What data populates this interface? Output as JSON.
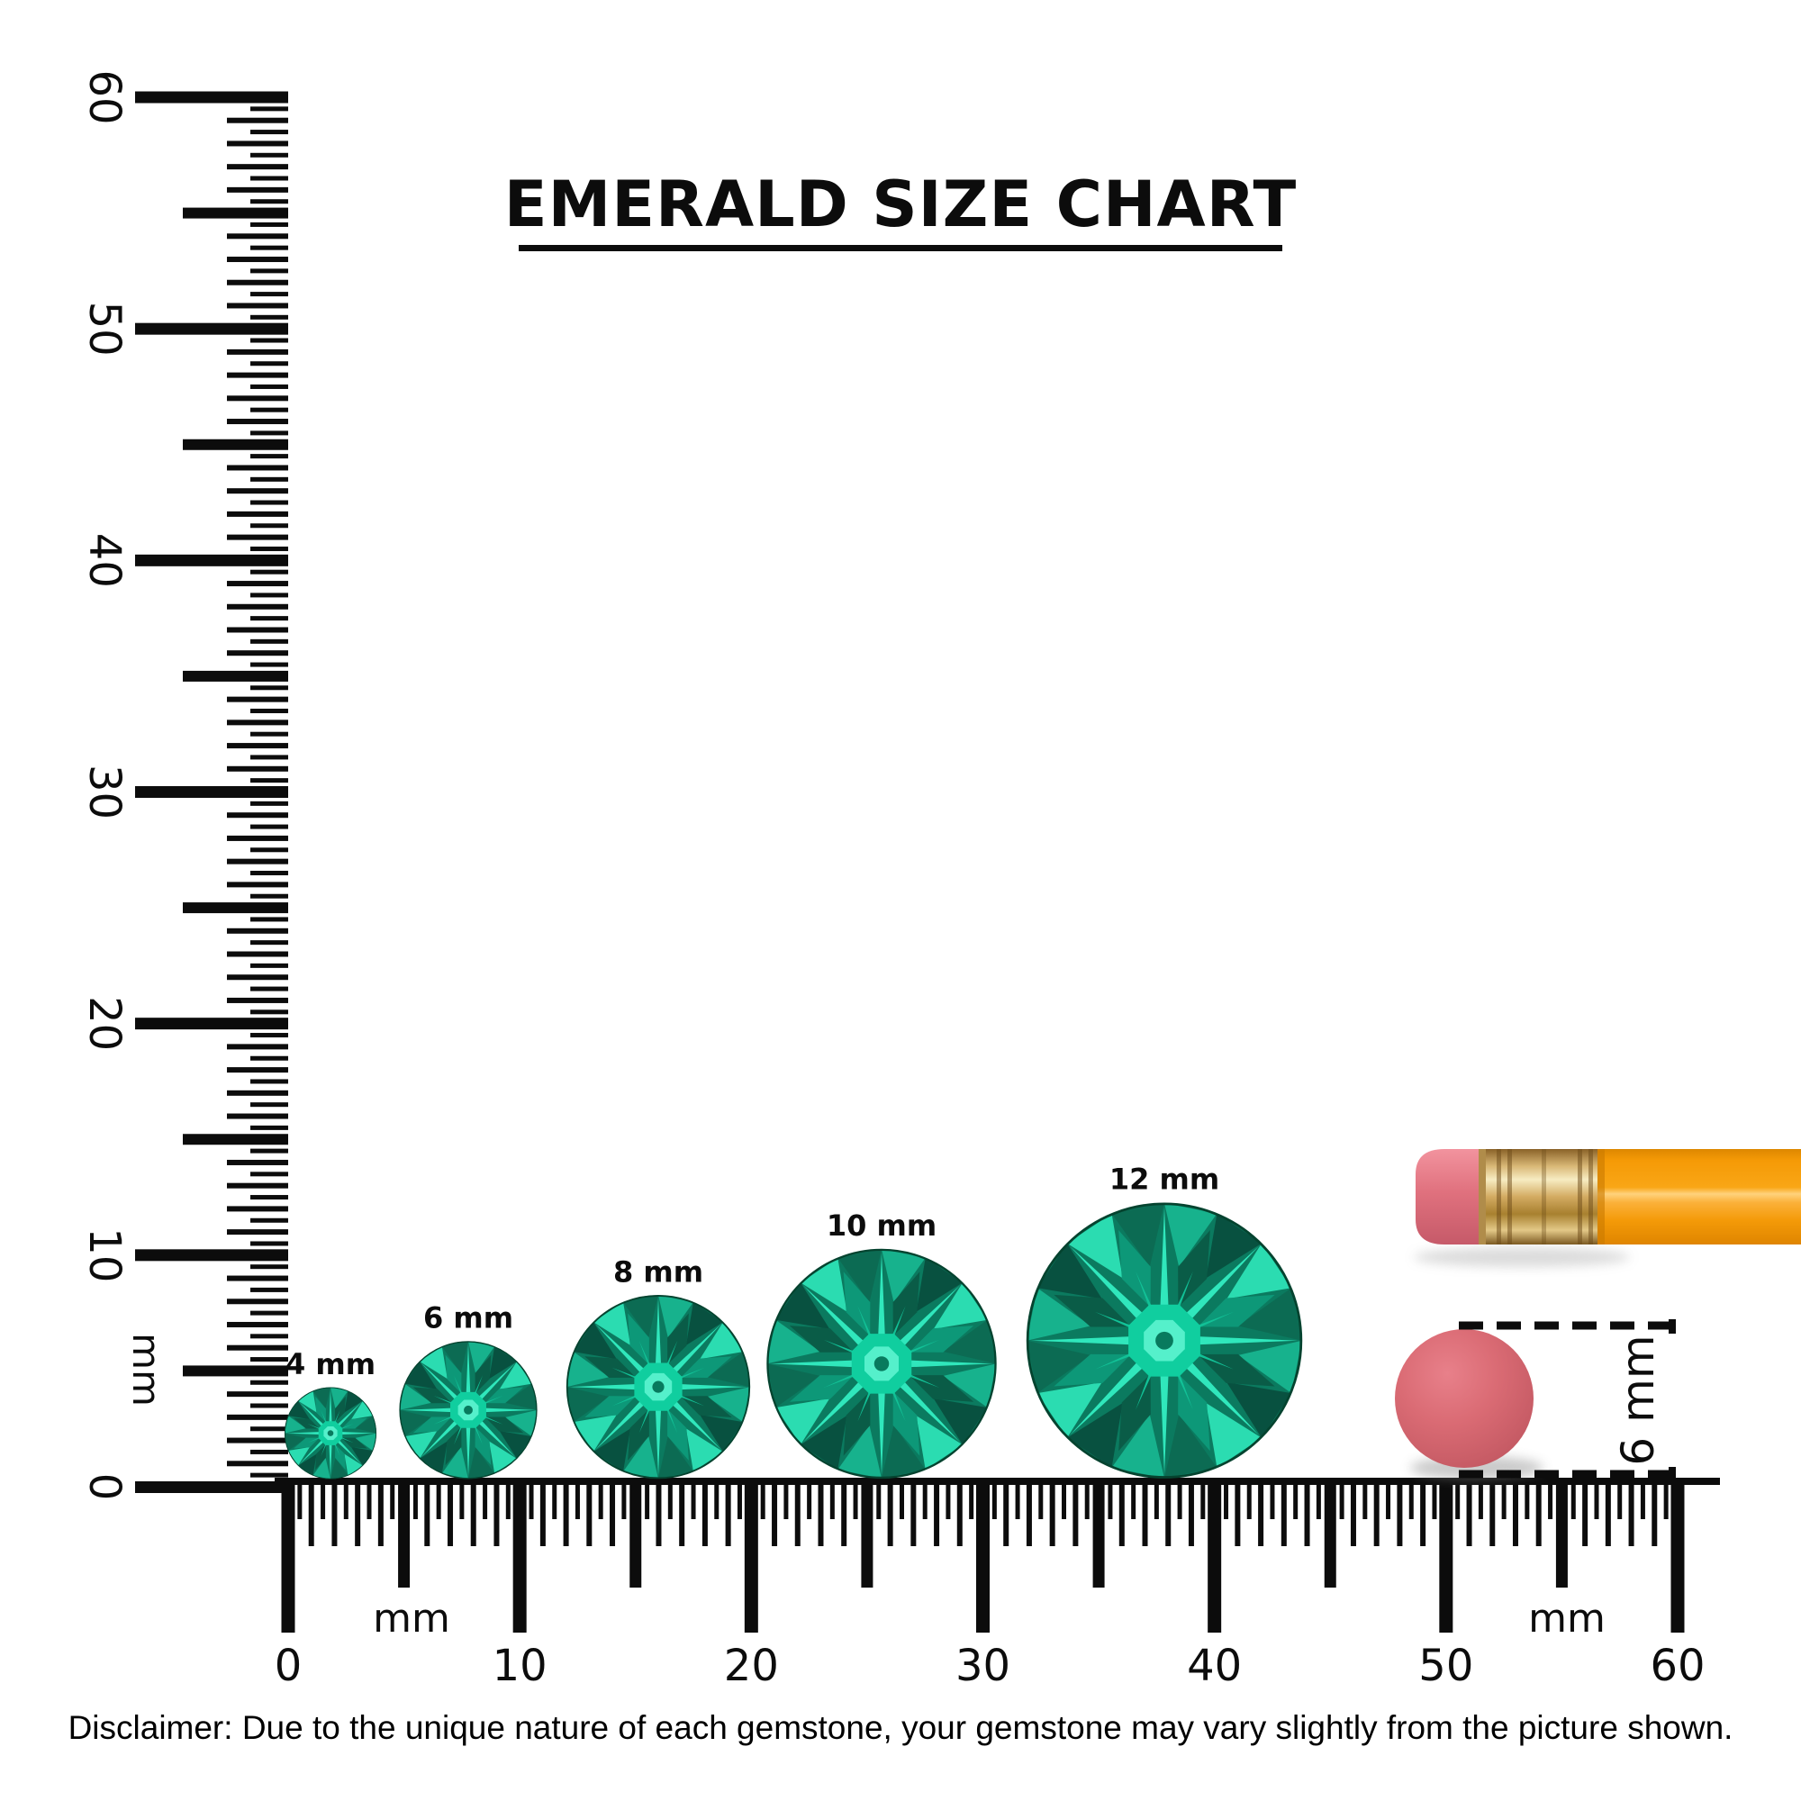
{
  "title": "EMERALD SIZE CHART",
  "vertical_ruler": {
    "unit": "mm",
    "tick_labels": [
      "0",
      "10",
      "20",
      "30",
      "40",
      "50",
      "60"
    ]
  },
  "horizontal_ruler": {
    "unit_labels": [
      "mm",
      "mm"
    ],
    "tick_labels": [
      "0",
      "10",
      "20",
      "30",
      "40",
      "50",
      "60"
    ]
  },
  "gems": [
    {
      "label": "4 mm",
      "size_mm": 4
    },
    {
      "label": "6 mm",
      "size_mm": 6
    },
    {
      "label": "8 mm",
      "size_mm": 8
    },
    {
      "label": "10 mm",
      "size_mm": 10
    },
    {
      "label": "12 mm",
      "size_mm": 12
    }
  ],
  "eraser_reference": {
    "label": "6 mm",
    "diameter_mm": 6
  },
  "disclaimer": "Disclaimer: Due to the unique nature of each gemstone, your gemstone may vary slightly from the picture shown.",
  "colors": {
    "ink": "#0c0c0c",
    "gem_bright": "#30e7bc",
    "gem_mid": "#12a384",
    "gem_dark": "#085140",
    "pencil_body": "#f89c07",
    "ferrule_gold": "#e8c987",
    "eraser_pink": "#d9686f"
  }
}
